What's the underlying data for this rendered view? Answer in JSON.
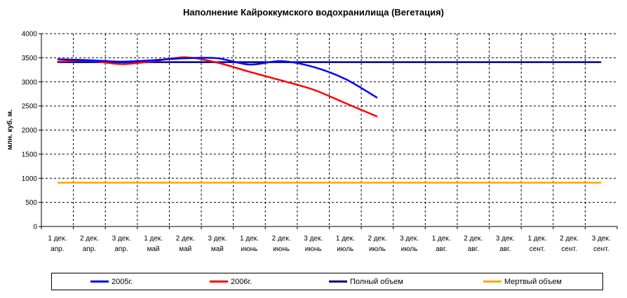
{
  "chart_data": {
    "type": "line",
    "title": "Наполнение Кайроккумского водохранилища (Вегетация)",
    "xlabel": "",
    "ylabel": "млн. куб. м.",
    "ylim": [
      0,
      4000
    ],
    "yticks": [
      0,
      500,
      1000,
      1500,
      2000,
      2500,
      3000,
      3500,
      4000
    ],
    "grid": true,
    "legend_position": "bottom",
    "categories": [
      [
        "1 дек.",
        "апр."
      ],
      [
        "2 дек.",
        "апр."
      ],
      [
        "3 дек.",
        "апр."
      ],
      [
        "1 дек.",
        "май"
      ],
      [
        "2 дек.",
        "май"
      ],
      [
        "3 дек.",
        "май"
      ],
      [
        "1 дек.",
        "июнь"
      ],
      [
        "2 дек.",
        "июнь"
      ],
      [
        "3 дек.",
        "июнь"
      ],
      [
        "1 дек.",
        "июль"
      ],
      [
        "2 дек.",
        "июль"
      ],
      [
        "3 дек.",
        "июль"
      ],
      [
        "1 дек.",
        "авг."
      ],
      [
        "2 дек.",
        "авг."
      ],
      [
        "3 дек.",
        "авг."
      ],
      [
        "1 дек.",
        "сент."
      ],
      [
        "2 дек.",
        "сент."
      ],
      [
        "3 дек.",
        "сент."
      ]
    ],
    "series": [
      {
        "name": "2005г.",
        "color": "#0000ff",
        "values": [
          3470,
          3450,
          3420,
          3450,
          3490,
          3490,
          3360,
          3430,
          3310,
          3060,
          2670,
          null,
          null,
          null,
          null,
          null,
          null,
          null
        ]
      },
      {
        "name": "2006г.",
        "color": "#ff0000",
        "values": [
          3420,
          3440,
          3370,
          3430,
          3510,
          3400,
          3210,
          3030,
          2840,
          2560,
          2280,
          null,
          null,
          null,
          null,
          null,
          null,
          null
        ]
      },
      {
        "name": "Полный объем",
        "color": "#000080",
        "values": [
          3410,
          3410,
          3410,
          3410,
          3410,
          3410,
          3410,
          3410,
          3410,
          3410,
          3410,
          3410,
          3410,
          3410,
          3410,
          3410,
          3410,
          3410
        ]
      },
      {
        "name": "Мертвый объем",
        "color": "#ffa500",
        "values": [
          910,
          910,
          910,
          910,
          910,
          910,
          910,
          910,
          910,
          910,
          910,
          910,
          910,
          910,
          910,
          910,
          910,
          910
        ]
      }
    ]
  }
}
